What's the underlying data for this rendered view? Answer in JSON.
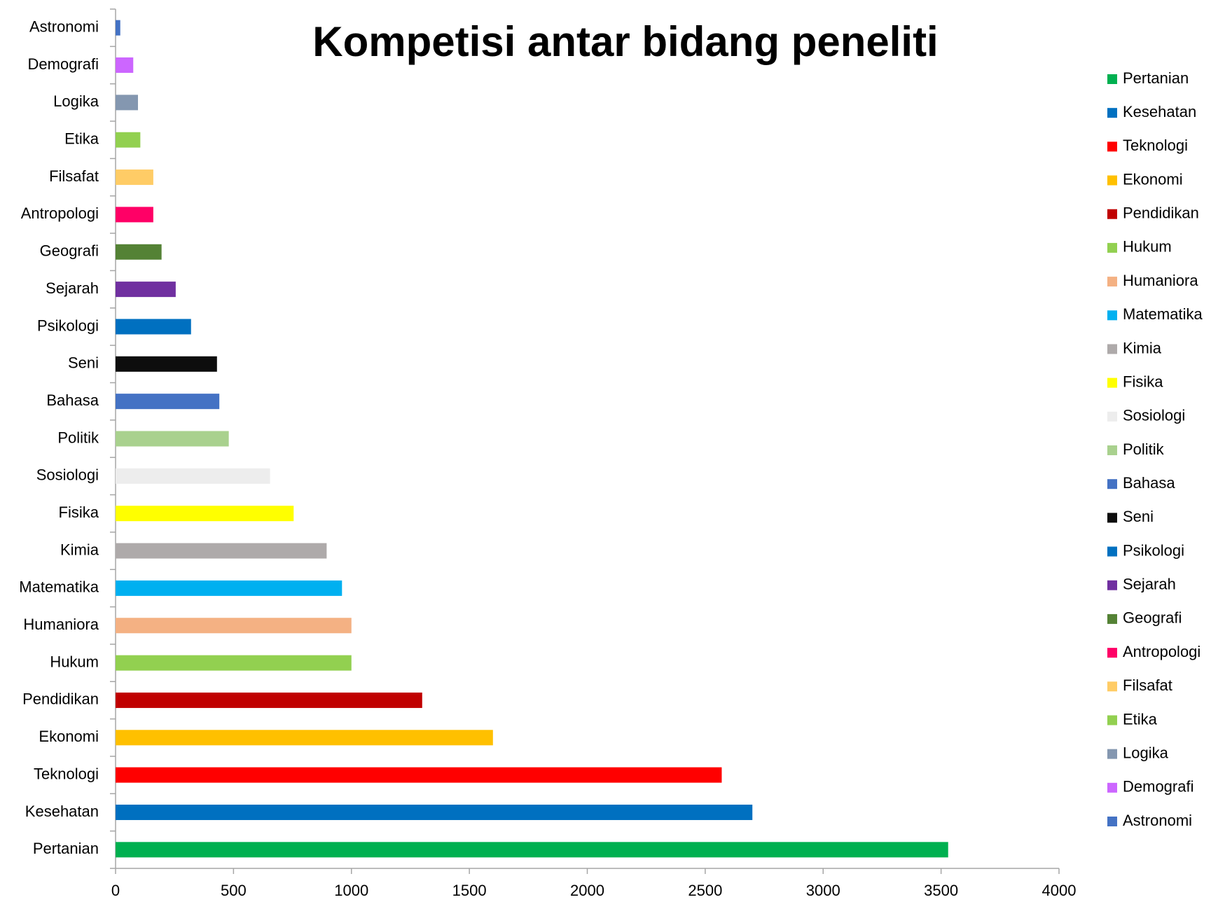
{
  "chart_data": {
    "type": "barh",
    "title": "Kompetisi antar bidang peneliti",
    "categories": [
      "Pertanian",
      "Kesehatan",
      "Teknologi",
      "Ekonomi",
      "Pendidikan",
      "Hukum",
      "Humaniora",
      "Matematika",
      "Kimia",
      "Fisika",
      "Sosiologi",
      "Politik",
      "Bahasa",
      "Seni",
      "Psikologi",
      "Sejarah",
      "Geografi",
      "Antropologi",
      "Filsafat",
      "Etika",
      "Logika",
      "Demografi",
      "Astronomi"
    ],
    "values": [
      3530,
      2700,
      2570,
      1600,
      1300,
      1000,
      1000,
      960,
      895,
      755,
      655,
      480,
      440,
      430,
      320,
      255,
      195,
      160,
      160,
      105,
      95,
      75,
      20
    ],
    "colors": [
      "#00b050",
      "#0070c0",
      "#ff0000",
      "#ffc000",
      "#c00000",
      "#92d050",
      "#f4b183",
      "#00b0f0",
      "#aeaaaa",
      "#ffff00",
      "#ededed",
      "#a9d18e",
      "#4472c4",
      "#0d0d0d",
      "#0070c0",
      "#7030a0",
      "#548235",
      "#ff0066",
      "#ffcc66",
      "#92d050",
      "#8497b0",
      "#cc66ff",
      "#4472c4"
    ],
    "xlim": [
      0,
      4000
    ],
    "xticks": [
      0,
      500,
      1000,
      1500,
      2000,
      2500,
      3000,
      3500,
      4000
    ],
    "legend": "right"
  }
}
